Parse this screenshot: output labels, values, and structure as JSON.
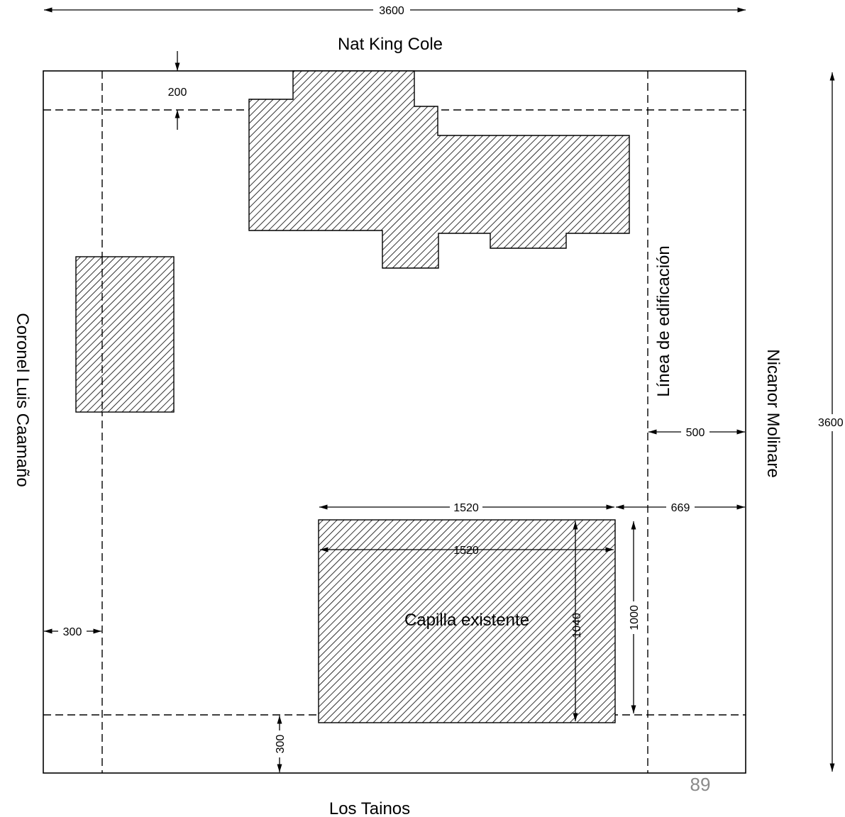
{
  "streets": {
    "top": "Nat King Cole",
    "bottom": "Los Tainos",
    "left": "Coronel Luis Caamaño",
    "right": "Nicanor Molinare"
  },
  "building_line_label": "Línea de edificación",
  "chapel_label": "Capilla existente",
  "dimensions": {
    "overall_width": "3600",
    "overall_height": "3600",
    "front_setback_top": "200",
    "setback_left": "300",
    "setback_bottom": "300",
    "setback_right": "500",
    "chapel_width_outer": "1520",
    "chapel_width_inner": "1520",
    "chapel_to_edge": "669",
    "chapel_height_outer": "1000",
    "chapel_height_inner": "1040"
  },
  "page_number": "89"
}
